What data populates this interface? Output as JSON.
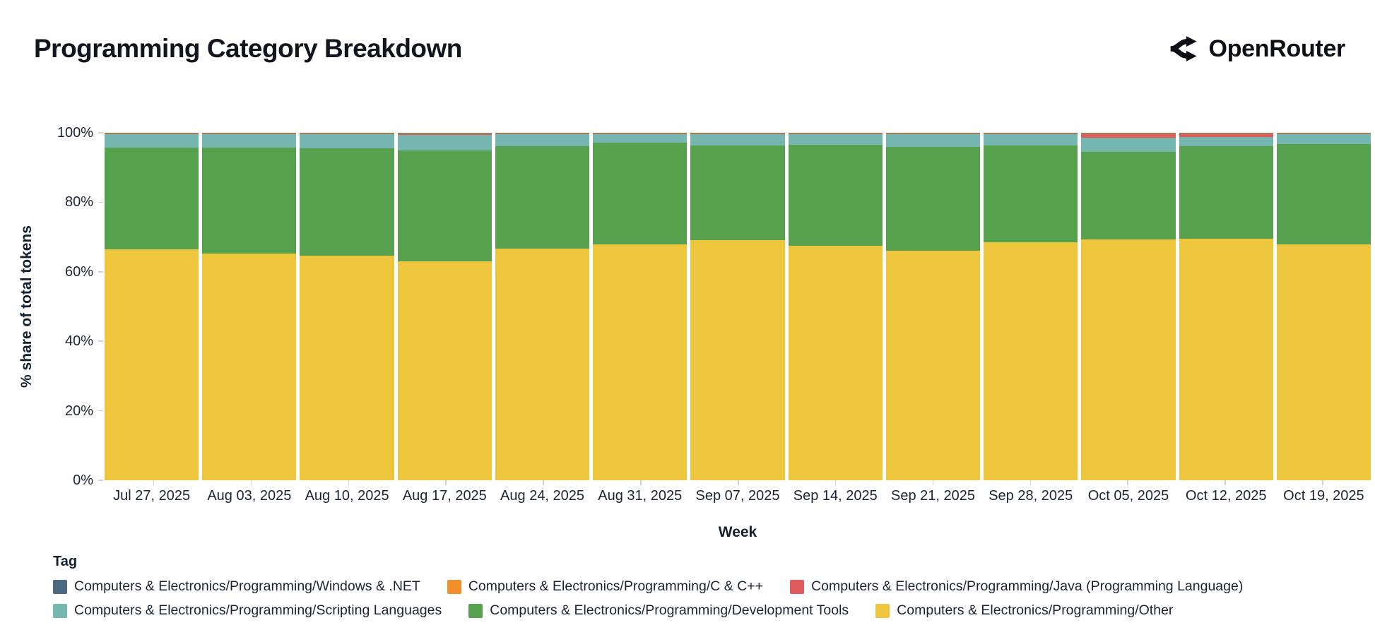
{
  "header": {
    "title": "Programming Category Breakdown",
    "brand": "OpenRouter"
  },
  "chart_data": {
    "type": "stacked_bar_100",
    "title": "Programming Category Breakdown",
    "xlabel": "Week",
    "ylabel": "% share of total tokens",
    "ylim": [
      0,
      100
    ],
    "grid": false,
    "legend_position": "bottom",
    "yticks": [
      {
        "value": 0,
        "label": "0%"
      },
      {
        "value": 20,
        "label": "20%"
      },
      {
        "value": 40,
        "label": "40%"
      },
      {
        "value": 60,
        "label": "60%"
      },
      {
        "value": 80,
        "label": "80%"
      },
      {
        "value": 100,
        "label": "100%"
      }
    ],
    "categories": [
      "Jul 27, 2025",
      "Aug 03, 2025",
      "Aug 10, 2025",
      "Aug 17, 2025",
      "Aug 24, 2025",
      "Aug 31, 2025",
      "Sep 07, 2025",
      "Sep 14, 2025",
      "Sep 21, 2025",
      "Sep 28, 2025",
      "Oct 05, 2025",
      "Oct 12, 2025",
      "Oct 19, 2025"
    ],
    "stack_order_note": "series listed bottom-to-top of each bar, values are % share per week",
    "series": [
      {
        "name": "Computers & Electronics/Programming/Other",
        "color": "#edc63e",
        "pattern": false,
        "values": [
          66.4,
          65.2,
          64.7,
          63.1,
          66.7,
          67.9,
          69.2,
          67.5,
          66.1,
          68.4,
          69.4,
          69.6,
          67.8
        ]
      },
      {
        "name": "Computers & Electronics/Programming/Development Tools",
        "color": "#57a14e",
        "pattern": false,
        "values": [
          29.4,
          30.5,
          30.8,
          31.9,
          29.4,
          29.2,
          27.1,
          29.1,
          29.8,
          28.0,
          25.2,
          26.5,
          28.9
        ]
      },
      {
        "name": "Computers & Electronics/Programming/Scripting Languages",
        "color": "#75b6b1",
        "pattern": false,
        "values": [
          3.7,
          3.8,
          4.0,
          4.5,
          3.4,
          2.4,
          3.2,
          2.9,
          3.6,
          3.1,
          3.9,
          2.6,
          2.9
        ]
      },
      {
        "name": "Computers & Electronics/Programming/Java (Programming Language)",
        "color": "#e05b5b",
        "pattern": false,
        "values": [
          0.1,
          0.1,
          0.1,
          0.1,
          0.1,
          0.1,
          0.1,
          0.1,
          0.1,
          0.1,
          1.1,
          0.9,
          0.1
        ]
      },
      {
        "name": "Computers & Electronics/Programming/C & C++",
        "color": "#f28e2b",
        "pattern": false,
        "values": [
          0.3,
          0.3,
          0.3,
          0.3,
          0.3,
          0.3,
          0.3,
          0.3,
          0.3,
          0.3,
          0.3,
          0.3,
          0.2
        ]
      },
      {
        "name": "Computers & Electronics/Programming/Windows & .NET",
        "color": "#4e6880",
        "pattern": true,
        "values": [
          0.1,
          0.1,
          0.1,
          0.1,
          0.1,
          0.1,
          0.1,
          0.1,
          0.1,
          0.1,
          0.1,
          0.1,
          0.1
        ]
      }
    ]
  },
  "legend": {
    "title": "Tag",
    "rows": [
      [
        {
          "label": "Computers & Electronics/Programming/Windows & .NET",
          "color": "#4e6880",
          "pattern": true
        },
        {
          "label": "Computers & Electronics/Programming/C & C++",
          "color": "#f28e2b",
          "pattern": false
        },
        {
          "label": "Computers & Electronics/Programming/Java (Programming Language)",
          "color": "#e05b5b",
          "pattern": false
        }
      ],
      [
        {
          "label": "Computers & Electronics/Programming/Scripting Languages",
          "color": "#75b6b1",
          "pattern": false
        },
        {
          "label": "Computers & Electronics/Programming/Development Tools",
          "color": "#57a14e",
          "pattern": false
        },
        {
          "label": "Computers & Electronics/Programming/Other",
          "color": "#edc63e",
          "pattern": false
        }
      ]
    ]
  }
}
